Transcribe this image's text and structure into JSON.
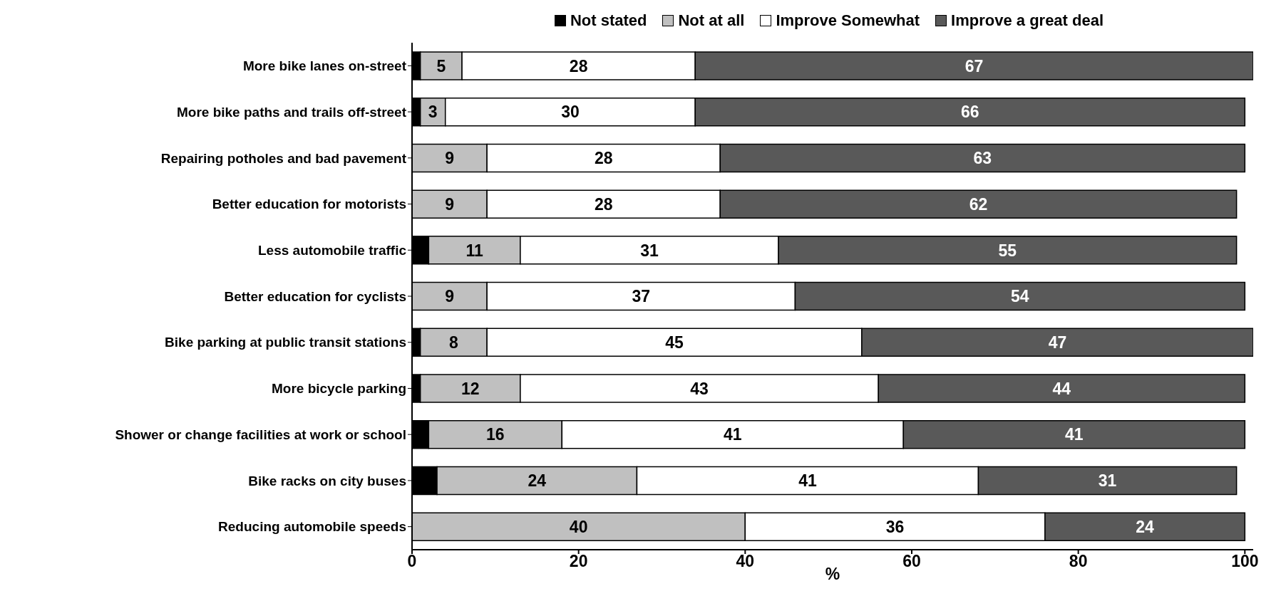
{
  "chart_data": {
    "type": "bar",
    "orientation": "horizontal",
    "stacked": true,
    "xlabel": "%",
    "legend": "top",
    "grid": false,
    "categories": [
      "More bike lanes on-street",
      "More bike paths and trails off-street",
      "Repairing potholes and bad pavement",
      "Better education for motorists",
      "Less automobile traffic",
      "Better education for cyclists",
      "Bike parking at public transit stations",
      "More bicycle parking",
      "Shower or change facilities at work or school",
      "Bike racks on city buses",
      "Reducing automobile speeds"
    ],
    "xlim": [
      0,
      101
    ],
    "xticks": [
      0,
      20,
      40,
      60,
      80,
      100
    ],
    "series": [
      {
        "name": "Not stated",
        "color": "#000000",
        "values": [
          1,
          1,
          0,
          0,
          2,
          0,
          1,
          1,
          2,
          3,
          0
        ],
        "value_labels": [
          null,
          null,
          null,
          null,
          null,
          null,
          null,
          null,
          null,
          null,
          null
        ]
      },
      {
        "name": "Not at all",
        "color": "#c0c0c0",
        "values": [
          5,
          3,
          9,
          9,
          11,
          9,
          8,
          12,
          16,
          24,
          40
        ],
        "value_labels": [
          "5",
          "3",
          "9",
          "9",
          "11",
          "9",
          "8",
          "12",
          "16",
          "24",
          "40"
        ]
      },
      {
        "name": "Improve Somewhat",
        "color": "#ffffff",
        "values": [
          28,
          30,
          28,
          28,
          31,
          37,
          45,
          43,
          41,
          41,
          36
        ],
        "value_labels": [
          "28",
          "30",
          "28",
          "28",
          "31",
          "37",
          "45",
          "43",
          "41",
          "41",
          "36"
        ]
      },
      {
        "name": "Improve a great deal",
        "color": "#595959",
        "values": [
          67,
          66,
          63,
          62,
          55,
          54,
          47,
          44,
          41,
          31,
          24
        ],
        "value_labels": [
          "67",
          "66",
          "63",
          "62",
          "55",
          "54",
          "47",
          "44",
          "41",
          "31",
          "24"
        ]
      }
    ]
  }
}
